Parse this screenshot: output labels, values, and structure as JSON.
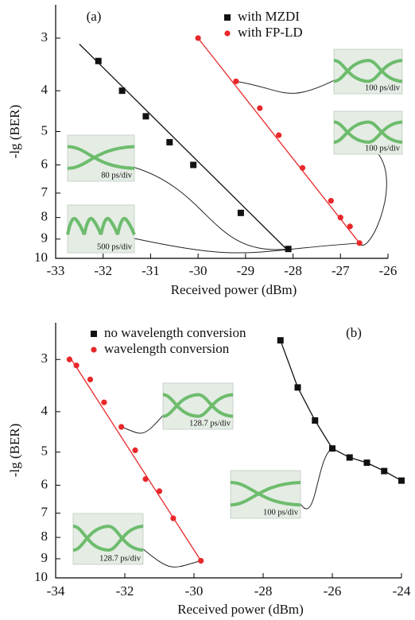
{
  "chart_data": [
    {
      "type": "scatter",
      "annotation": "(a)",
      "x_label": "Received power (dBm)",
      "y_label": "-lg (BER)",
      "xlim": [
        -33,
        -26
      ],
      "xticks": [
        -33,
        -32,
        -31,
        -30,
        -29,
        -28,
        -27,
        -26
      ],
      "ylim": [
        2.5,
        10
      ],
      "yticks": [
        3,
        4,
        5,
        6,
        7,
        8,
        9,
        10
      ],
      "yscale": "log",
      "y_inverted": true,
      "legend": "upper center",
      "series": [
        {
          "name": "with MZDI",
          "color": "#111111",
          "marker": "square",
          "x": [
            -32.1,
            -31.6,
            -31.1,
            -30.6,
            -30.1,
            -29.1,
            -28.1
          ],
          "values": [
            3.4,
            4.0,
            4.6,
            5.3,
            6.0,
            7.8,
            9.5
          ],
          "fit_x": [
            -32.5,
            -28.1
          ],
          "fit_y": [
            3.1,
            9.6
          ]
        },
        {
          "name": "with FP-LD",
          "color": "#e8282a",
          "marker": "circle",
          "x": [
            -30.0,
            -29.2,
            -28.7,
            -28.3,
            -27.8,
            -27.2,
            -27.0,
            -26.8,
            -26.6
          ],
          "values": [
            3.0,
            3.8,
            4.4,
            5.1,
            6.1,
            7.3,
            8.0,
            8.4,
            9.2
          ],
          "fit_x": [
            -30.0,
            -26.6
          ],
          "fit_y": [
            3.0,
            9.2
          ]
        }
      ],
      "insets": [
        {
          "label": "100 ps/div"
        },
        {
          "label": "100 ps/div"
        },
        {
          "label": "80 ps/div"
        },
        {
          "label": "500 ps/div"
        }
      ]
    },
    {
      "type": "scatter",
      "annotation": "(b)",
      "x_label": "Received power (dBm)",
      "y_label": "-lg (BER)",
      "xlim": [
        -34,
        -24
      ],
      "xticks": [
        -34,
        -32,
        -30,
        -28,
        -26,
        -24
      ],
      "ylim": [
        2.45,
        10
      ],
      "yticks": [
        3,
        4,
        5,
        6,
        7,
        8,
        9,
        10
      ],
      "yscale": "log",
      "y_inverted": true,
      "legend": "upper left",
      "series": [
        {
          "name": "no wavelength conversion",
          "color": "#111111",
          "marker": "square",
          "x": [
            -27.5,
            -27.0,
            -26.5,
            -26.0,
            -25.5,
            -25.0,
            -24.5,
            -24.0
          ],
          "values": [
            2.7,
            3.5,
            4.2,
            4.9,
            5.15,
            5.3,
            5.55,
            5.85
          ],
          "fit_x": [
            -27.5,
            -27.0,
            -26.5,
            -26.0,
            -25.5,
            -25.0,
            -24.5,
            -24.0
          ],
          "fit_y": [
            2.7,
            3.5,
            4.2,
            4.9,
            5.15,
            5.3,
            5.55,
            5.85
          ]
        },
        {
          "name": "wavelength conversion",
          "color": "#e8282a",
          "marker": "circle",
          "x": [
            -33.6,
            -33.4,
            -33.0,
            -32.6,
            -32.1,
            -31.7,
            -31.4,
            -31.0,
            -30.6,
            -29.8
          ],
          "values": [
            3.0,
            3.1,
            3.35,
            3.8,
            4.35,
            4.95,
            5.8,
            6.2,
            7.2,
            9.1
          ],
          "fit_x": [
            -33.6,
            -29.8
          ],
          "fit_y": [
            2.95,
            9.1
          ]
        }
      ],
      "insets": [
        {
          "label": "128.7 ps/div"
        },
        {
          "label": "100 ps/div"
        },
        {
          "label": "128.7 ps/div"
        }
      ]
    }
  ]
}
